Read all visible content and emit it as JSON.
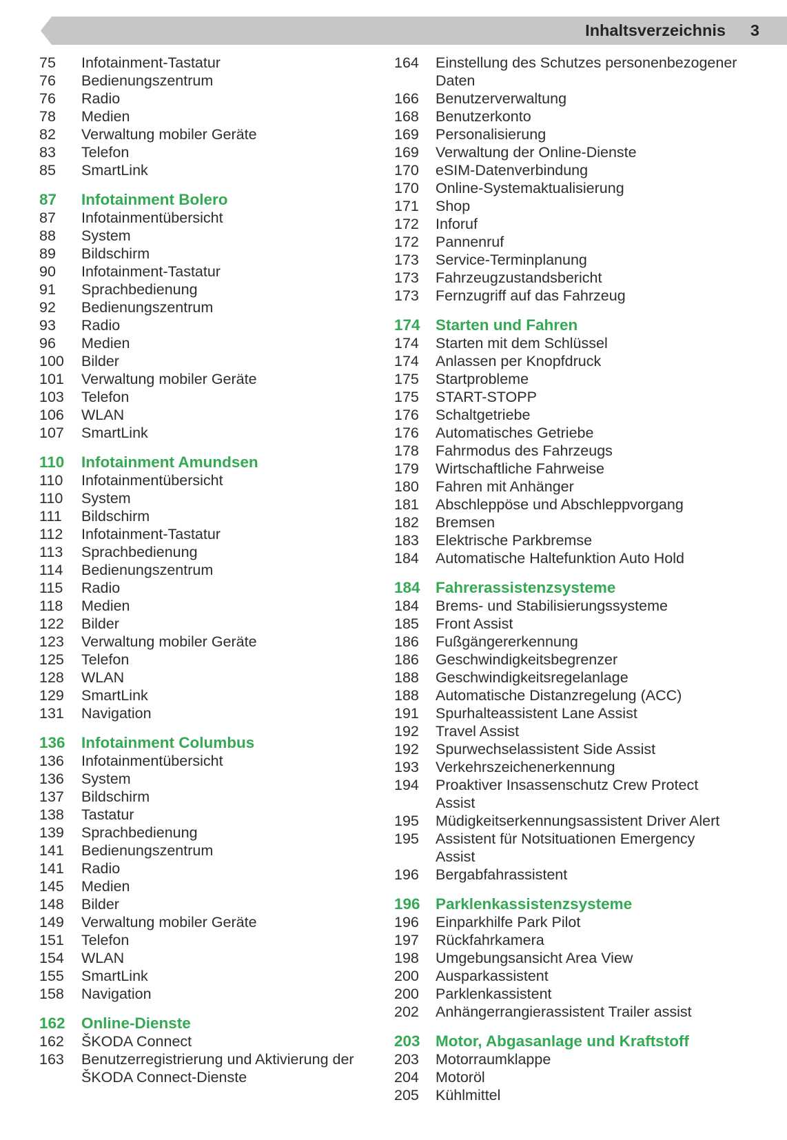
{
  "header": {
    "title": "Inhaltsverzeichnis",
    "page_number": "3"
  },
  "colors": {
    "accent_green": "#34a853",
    "banner_gray": "#c6c6c8",
    "body_text": "#2d2d2f"
  },
  "toc": {
    "columns": [
      {
        "sections": [
          {
            "header": null,
            "entries": [
              {
                "page": "75",
                "title": "Infotainment-Tastatur"
              },
              {
                "page": "76",
                "title": "Bedienungszentrum"
              },
              {
                "page": "76",
                "title": "Radio"
              },
              {
                "page": "78",
                "title": "Medien"
              },
              {
                "page": "82",
                "title": "Verwaltung mobiler Geräte"
              },
              {
                "page": "83",
                "title": "Telefon"
              },
              {
                "page": "85",
                "title": "SmartLink"
              }
            ]
          },
          {
            "header": {
              "page": "87",
              "title": "Infotainment Bolero"
            },
            "entries": [
              {
                "page": "87",
                "title": "Infotainmentübersicht"
              },
              {
                "page": "88",
                "title": "System"
              },
              {
                "page": "89",
                "title": "Bildschirm"
              },
              {
                "page": "90",
                "title": "Infotainment-Tastatur"
              },
              {
                "page": "91",
                "title": "Sprachbedienung"
              },
              {
                "page": "92",
                "title": "Bedienungszentrum"
              },
              {
                "page": "93",
                "title": "Radio"
              },
              {
                "page": "96",
                "title": "Medien"
              },
              {
                "page": "100",
                "title": "Bilder"
              },
              {
                "page": "101",
                "title": "Verwaltung mobiler Geräte"
              },
              {
                "page": "103",
                "title": "Telefon"
              },
              {
                "page": "106",
                "title": "WLAN"
              },
              {
                "page": "107",
                "title": "SmartLink"
              }
            ]
          },
          {
            "header": {
              "page": "110",
              "title": "Infotainment Amundsen"
            },
            "entries": [
              {
                "page": "110",
                "title": "Infotainmentübersicht"
              },
              {
                "page": "110",
                "title": "System"
              },
              {
                "page": "111",
                "title": "Bildschirm"
              },
              {
                "page": "112",
                "title": "Infotainment-Tastatur"
              },
              {
                "page": "113",
                "title": "Sprachbedienung"
              },
              {
                "page": "114",
                "title": "Bedienungszentrum"
              },
              {
                "page": "115",
                "title": "Radio"
              },
              {
                "page": "118",
                "title": "Medien"
              },
              {
                "page": "122",
                "title": "Bilder"
              },
              {
                "page": "123",
                "title": "Verwaltung mobiler Geräte"
              },
              {
                "page": "125",
                "title": "Telefon"
              },
              {
                "page": "128",
                "title": "WLAN"
              },
              {
                "page": "129",
                "title": "SmartLink"
              },
              {
                "page": "131",
                "title": "Navigation"
              }
            ]
          },
          {
            "header": {
              "page": "136",
              "title": "Infotainment Columbus"
            },
            "entries": [
              {
                "page": "136",
                "title": "Infotainmentübersicht"
              },
              {
                "page": "136",
                "title": "System"
              },
              {
                "page": "137",
                "title": "Bildschirm"
              },
              {
                "page": "138",
                "title": "Tastatur"
              },
              {
                "page": "139",
                "title": "Sprachbedienung"
              },
              {
                "page": "141",
                "title": "Bedienungszentrum"
              },
              {
                "page": "141",
                "title": "Radio"
              },
              {
                "page": "145",
                "title": "Medien"
              },
              {
                "page": "148",
                "title": "Bilder"
              },
              {
                "page": "149",
                "title": "Verwaltung mobiler Geräte"
              },
              {
                "page": "151",
                "title": "Telefon"
              },
              {
                "page": "154",
                "title": "WLAN"
              },
              {
                "page": "155",
                "title": "SmartLink"
              },
              {
                "page": "158",
                "title": "Navigation"
              }
            ]
          },
          {
            "header": {
              "page": "162",
              "title": "Online-Dienste"
            },
            "entries": [
              {
                "page": "162",
                "title": "ŠKODA Connect"
              },
              {
                "page": "163",
                "title": "Benutzerregistrierung und Aktivierung der\nŠKODA Connect-Dienste"
              }
            ]
          }
        ]
      },
      {
        "sections": [
          {
            "header": null,
            "entries": [
              {
                "page": "164",
                "title": "Einstellung des Schutzes personenbezogener\nDaten"
              },
              {
                "page": "166",
                "title": "Benutzerverwaltung"
              },
              {
                "page": "168",
                "title": "Benutzerkonto"
              },
              {
                "page": "169",
                "title": "Personalisierung"
              },
              {
                "page": "169",
                "title": "Verwaltung der Online-Dienste"
              },
              {
                "page": "170",
                "title": "eSIM-Datenverbindung"
              },
              {
                "page": "170",
                "title": "Online-Systemaktualisierung"
              },
              {
                "page": "171",
                "title": "Shop"
              },
              {
                "page": "172",
                "title": "Inforuf"
              },
              {
                "page": "172",
                "title": "Pannenruf"
              },
              {
                "page": "173",
                "title": "Service-Terminplanung"
              },
              {
                "page": "173",
                "title": "Fahrzeugzustandsbericht"
              },
              {
                "page": "173",
                "title": "Fernzugriff auf das Fahrzeug"
              }
            ]
          },
          {
            "header": {
              "page": "174",
              "title": "Starten und Fahren"
            },
            "entries": [
              {
                "page": "174",
                "title": "Starten mit dem Schlüssel"
              },
              {
                "page": "174",
                "title": "Anlassen per Knopfdruck"
              },
              {
                "page": "175",
                "title": "Startprobleme"
              },
              {
                "page": "175",
                "title": "START-STOPP"
              },
              {
                "page": "176",
                "title": "Schaltgetriebe"
              },
              {
                "page": "176",
                "title": "Automatisches Getriebe"
              },
              {
                "page": "178",
                "title": "Fahrmodus des Fahrzeugs"
              },
              {
                "page": "179",
                "title": "Wirtschaftliche Fahrweise"
              },
              {
                "page": "180",
                "title": "Fahren mit Anhänger"
              },
              {
                "page": "181",
                "title": "Abschleppöse und Abschleppvorgang"
              },
              {
                "page": "182",
                "title": "Bremsen"
              },
              {
                "page": "183",
                "title": "Elektrische Parkbremse"
              },
              {
                "page": "184",
                "title": "Automatische Haltefunktion Auto Hold"
              }
            ]
          },
          {
            "header": {
              "page": "184",
              "title": "Fahrerassistenzsysteme"
            },
            "entries": [
              {
                "page": "184",
                "title": "Brems- und Stabilisierungssysteme"
              },
              {
                "page": "185",
                "title": "Front Assist"
              },
              {
                "page": "186",
                "title": "Fußgängererkennung"
              },
              {
                "page": "186",
                "title": "Geschwindigkeitsbegrenzer"
              },
              {
                "page": "188",
                "title": "Geschwindigkeitsregelanlage"
              },
              {
                "page": "188",
                "title": "Automatische Distanzregelung (ACC)"
              },
              {
                "page": "191",
                "title": "Spurhalteassistent Lane Assist"
              },
              {
                "page": "192",
                "title": "Travel Assist"
              },
              {
                "page": "192",
                "title": "Spurwechselassistent Side Assist"
              },
              {
                "page": "193",
                "title": "Verkehrszeichenerkennung"
              },
              {
                "page": "194",
                "title": "Proaktiver Insassenschutz Crew Protect\nAssist"
              },
              {
                "page": "195",
                "title": "Müdigkeitserkennungsassistent Driver Alert"
              },
              {
                "page": "195",
                "title": "Assistent für Notsituationen Emergency\nAssist"
              },
              {
                "page": "196",
                "title": "Bergabfahrassistent"
              }
            ]
          },
          {
            "header": {
              "page": "196",
              "title": "Parklenkassistenzsysteme"
            },
            "entries": [
              {
                "page": "196",
                "title": "Einparkhilfe Park Pilot"
              },
              {
                "page": "197",
                "title": "Rückfahrkamera"
              },
              {
                "page": "198",
                "title": "Umgebungsansicht Area View"
              },
              {
                "page": "200",
                "title": "Ausparkassistent"
              },
              {
                "page": "200",
                "title": "Parklenkassistent"
              },
              {
                "page": "202",
                "title": "Anhängerrangierassistent Trailer assist"
              }
            ]
          },
          {
            "header": {
              "page": "203",
              "title": "Motor, Abgasanlage und Kraftstoff"
            },
            "entries": [
              {
                "page": "203",
                "title": "Motorraumklappe"
              },
              {
                "page": "204",
                "title": "Motoröl"
              },
              {
                "page": "205",
                "title": "Kühlmittel"
              }
            ]
          }
        ]
      }
    ]
  }
}
